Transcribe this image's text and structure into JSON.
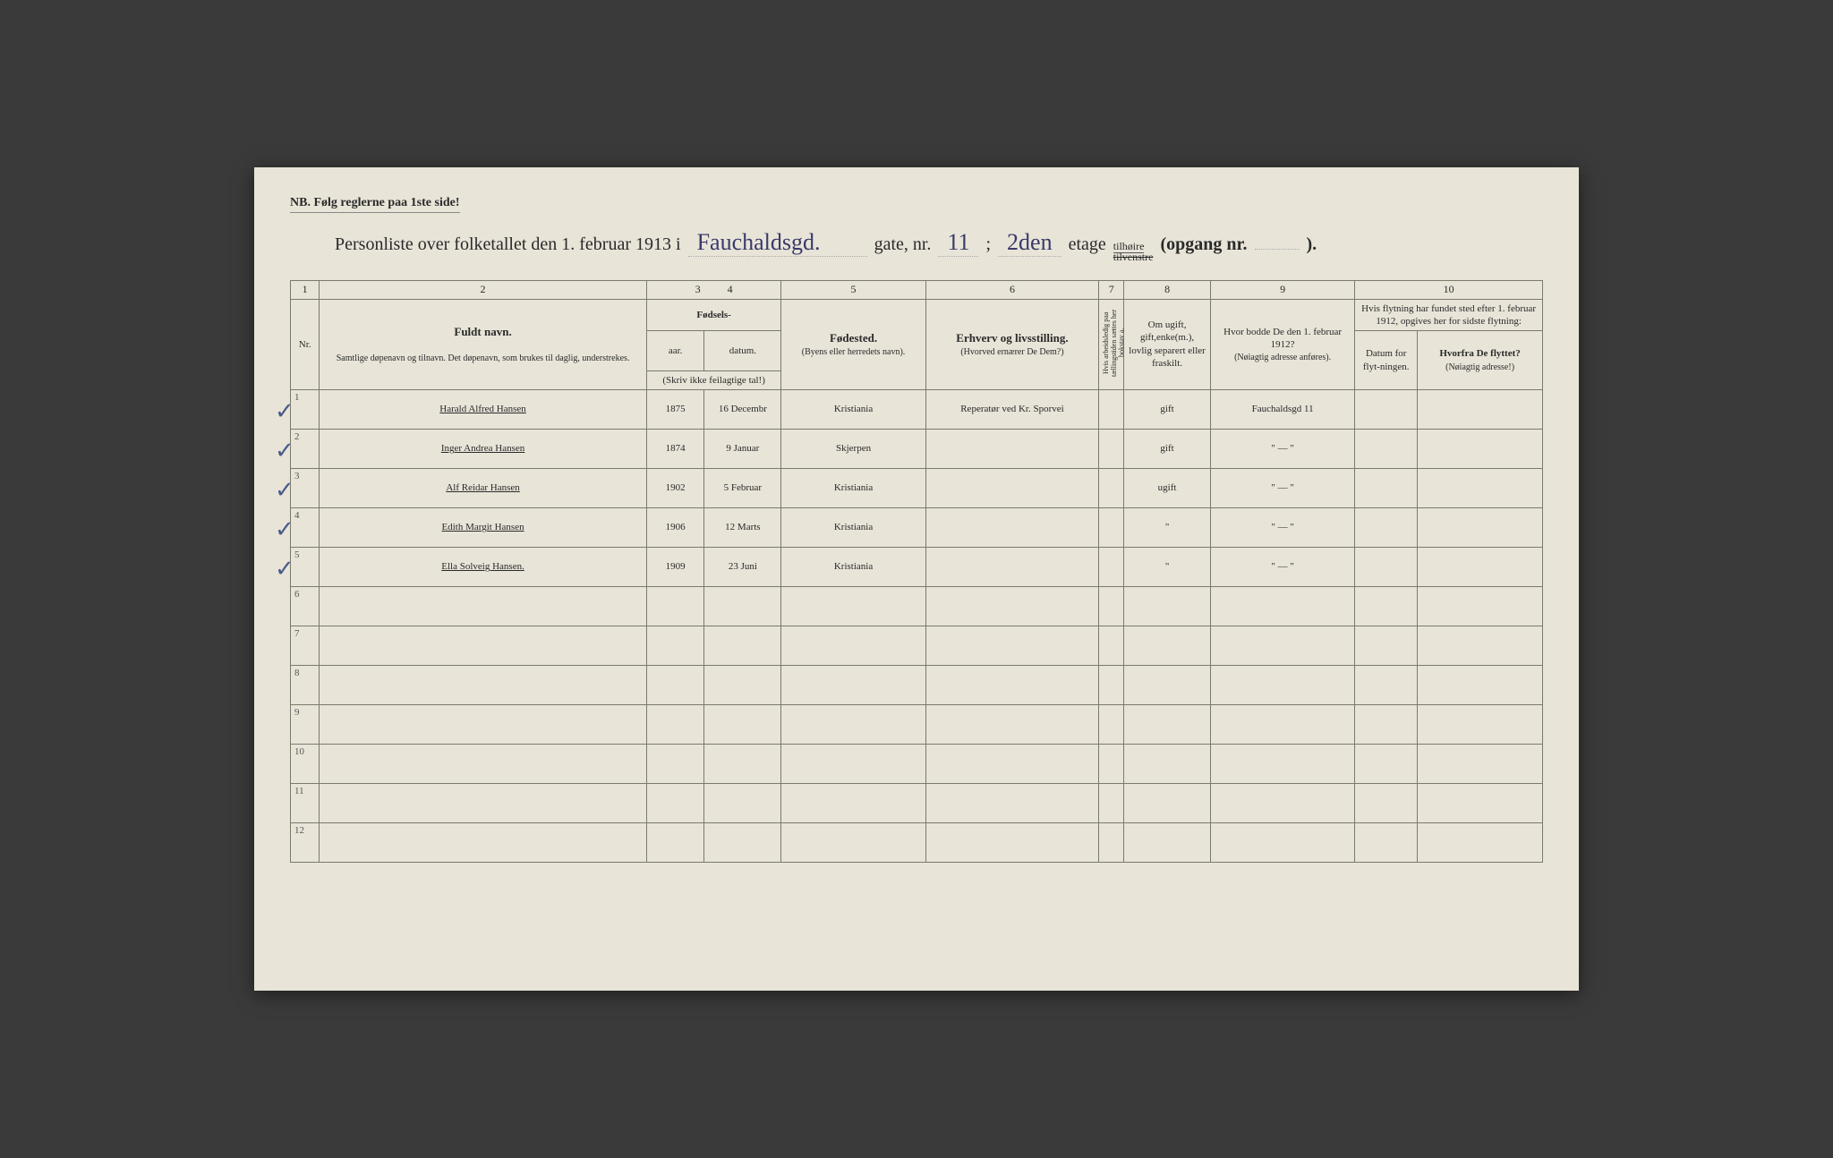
{
  "header": {
    "top_note": "NB. Følg reglerne paa 1ste side!",
    "title_prefix": "Personliste over folketallet den 1. februar 1913 i",
    "street_hand": "Fauchaldsgd.",
    "gate_label": "gate, nr.",
    "gate_nr": "11",
    "semicolon": ";",
    "etage_hand": "2den",
    "etage_label": "etage",
    "side_label": "tilhøire",
    "side_strike": "tilvenstre",
    "opgang_label": "(opgang nr.",
    "opgang_nr": "",
    "closing": ")."
  },
  "columns": {
    "numbers": [
      "1",
      "2",
      "3",
      "4",
      "5",
      "6",
      "7",
      "8",
      "9",
      "10"
    ],
    "nr": "Nr.",
    "name_strong": "Fuldt navn.",
    "name_sub": "Samtlige døpenavn og tilnavn. Det døpenavn, som brukes til daglig, understrekes.",
    "fodsels": "Fødsels-",
    "aar": "aar.",
    "datum": "datum.",
    "birth_note": "(Skriv ikke feilagtige tal!)",
    "birthplace_strong": "Fødested.",
    "birthplace_sub": "(Byens eller herredets navn).",
    "occupation_strong": "Erhverv og livsstilling.",
    "occupation_sub": "(Hvorved ernærer De Dem?)",
    "absent": "Hvis arbeidsledig paa tællingstiden sættes her bokstav a.",
    "marital": "Om ugift, gift,enke(m.), lovlig separert eller fraskilt.",
    "residence_strong": "Hvor bodde De den 1. februar 1912?",
    "residence_sub": "(Nøiagtig adresse anføres).",
    "move_header": "Hvis flytning har fundet sted efter 1. februar 1912, opgives her for sidste flytning:",
    "move_date": "Datum for flyt-ningen.",
    "move_from_strong": "Hvorfra De flyttet?",
    "move_from_sub": "(Nøiagtig adresse!)"
  },
  "rows": [
    {
      "nr": "1",
      "check": "✓",
      "name": "Harald Alfred Hansen",
      "year": "1875",
      "date": "16 Decembr",
      "birthplace": "Kristiania",
      "occupation": "Reperatør ved Kr. Sporvei",
      "marital": "gift",
      "residence": "Fauchaldsgd 11"
    },
    {
      "nr": "2",
      "check": "✓",
      "name": "Inger Andrea Hansen",
      "year": "1874",
      "date": "9 Januar",
      "birthplace": "Skjerpen",
      "occupation": "",
      "marital": "gift",
      "residence": "\" — \""
    },
    {
      "nr": "3",
      "check": "✓",
      "name": "Alf Reidar Hansen",
      "year": "1902",
      "date": "5 Februar",
      "birthplace": "Kristiania",
      "occupation": "",
      "marital": "ugift",
      "residence": "\" — \""
    },
    {
      "nr": "4",
      "check": "✓",
      "name": "Edith Margit Hansen",
      "year": "1906",
      "date": "12 Marts",
      "birthplace": "Kristiania",
      "occupation": "",
      "marital": "\"",
      "residence": "\" — \""
    },
    {
      "nr": "5",
      "check": "✓",
      "name": "Ella Solveig Hansen.",
      "year": "1909",
      "date": "23 Juni",
      "birthplace": "Kristiania",
      "occupation": "",
      "marital": "\"",
      "residence": "\" — \""
    },
    {
      "nr": "6",
      "check": "",
      "name": "",
      "year": "",
      "date": "",
      "birthplace": "",
      "occupation": "",
      "marital": "",
      "residence": ""
    },
    {
      "nr": "7",
      "check": "",
      "name": "",
      "year": "",
      "date": "",
      "birthplace": "",
      "occupation": "",
      "marital": "",
      "residence": ""
    },
    {
      "nr": "8",
      "check": "",
      "name": "",
      "year": "",
      "date": "",
      "birthplace": "",
      "occupation": "",
      "marital": "",
      "residence": ""
    },
    {
      "nr": "9",
      "check": "",
      "name": "",
      "year": "",
      "date": "",
      "birthplace": "",
      "occupation": "",
      "marital": "",
      "residence": ""
    },
    {
      "nr": "10",
      "check": "",
      "name": "",
      "year": "",
      "date": "",
      "birthplace": "",
      "occupation": "",
      "marital": "",
      "residence": ""
    },
    {
      "nr": "11",
      "check": "",
      "name": "",
      "year": "",
      "date": "",
      "birthplace": "",
      "occupation": "",
      "marital": "",
      "residence": ""
    },
    {
      "nr": "12",
      "check": "",
      "name": "",
      "year": "",
      "date": "",
      "birthplace": "",
      "occupation": "",
      "marital": "",
      "residence": ""
    }
  ]
}
